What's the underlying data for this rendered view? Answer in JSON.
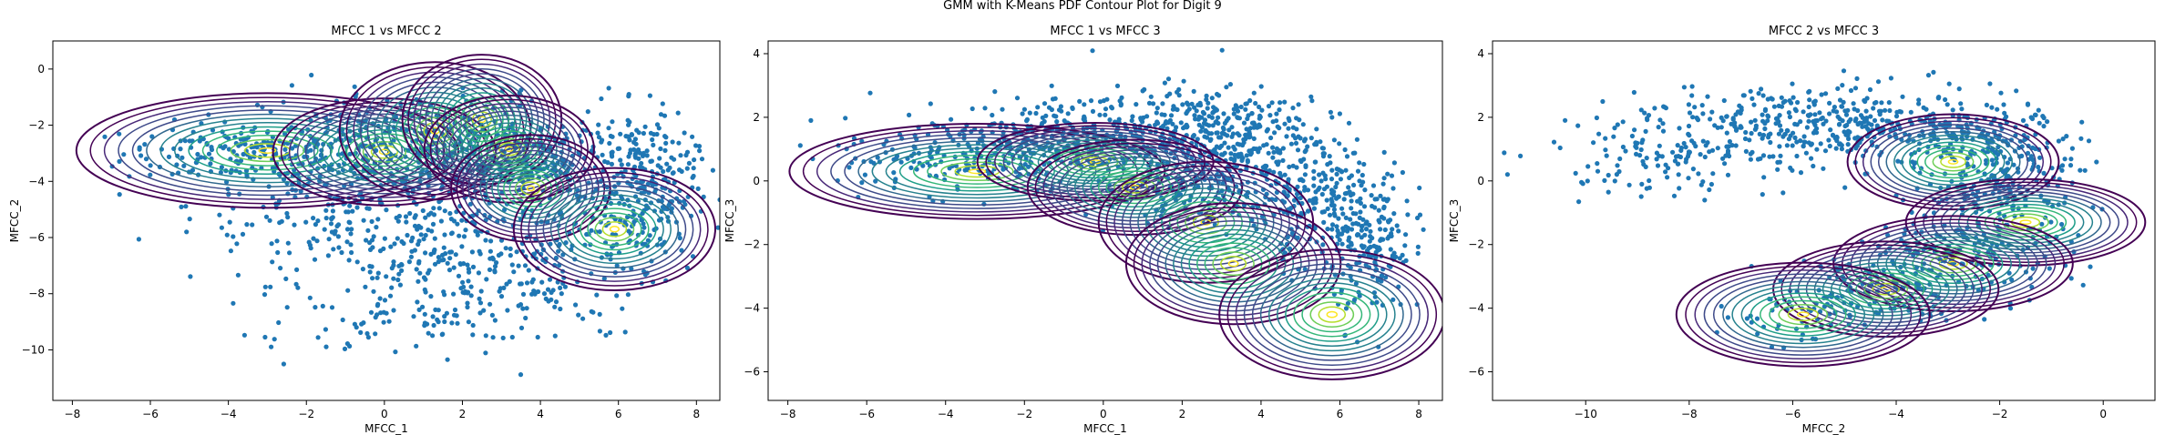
{
  "figure": {
    "suptitle": "GMM with K-Means PDF Contour Plot for Digit 9"
  },
  "colors": {
    "scatter": "#1f77b4",
    "viridis": [
      "#440154",
      "#482878",
      "#3e4a89",
      "#31688e",
      "#26828e",
      "#1f9e89",
      "#35b779",
      "#6ece58",
      "#b5de2b",
      "#fde725"
    ]
  },
  "chart_data": [
    {
      "type": "scatter",
      "title": "MFCC 1 vs MFCC 2",
      "xlabel": "MFCC_1",
      "ylabel": "MFCC_2",
      "xlim": [
        -8.5,
        8.6
      ],
      "ylim": [
        -11.8,
        1.0
      ],
      "xticks": [
        -8,
        -6,
        -4,
        -2,
        0,
        2,
        4,
        6,
        8
      ],
      "yticks": [
        0,
        -2,
        -4,
        -6,
        -8,
        -10
      ],
      "contour": "GMM PDF (viridis)",
      "components": [
        {
          "mean": [
            -3.0,
            -2.9
          ],
          "sd": [
            1.8,
            0.75
          ],
          "rot": 0
        },
        {
          "mean": [
            0.0,
            -2.95
          ],
          "sd": [
            1.05,
            0.7
          ],
          "rot": 0
        },
        {
          "mean": [
            1.3,
            -2.2
          ],
          "sd": [
            0.9,
            0.9
          ],
          "rot": 0
        },
        {
          "mean": [
            2.5,
            -1.8
          ],
          "sd": [
            0.75,
            0.85
          ],
          "rot": 0
        },
        {
          "mean": [
            3.2,
            -2.85
          ],
          "sd": [
            0.8,
            0.7
          ],
          "rot": 0
        },
        {
          "mean": [
            3.75,
            -4.25
          ],
          "sd": [
            0.75,
            0.7
          ],
          "rot": 0
        },
        {
          "mean": [
            5.9,
            -5.7
          ],
          "sd": [
            0.95,
            0.8
          ],
          "rot": 0
        }
      ],
      "scatter_clusters": [
        {
          "mean": [
            -3.5,
            -3.0
          ],
          "sd": [
            1.6,
            0.55
          ],
          "n": 180
        },
        {
          "mean": [
            -1.0,
            -4.8
          ],
          "sd": [
            2.0,
            1.4
          ],
          "n": 260
        },
        {
          "mean": [
            1.5,
            -7.2
          ],
          "sd": [
            1.8,
            1.3
          ],
          "n": 200
        },
        {
          "mean": [
            3.8,
            -6.6
          ],
          "sd": [
            1.6,
            1.5
          ],
          "n": 180
        },
        {
          "mean": [
            0.5,
            -2.6
          ],
          "sd": [
            1.8,
            0.9
          ],
          "n": 220
        },
        {
          "mean": [
            4.2,
            -3.3
          ],
          "sd": [
            1.8,
            0.9
          ],
          "n": 280
        },
        {
          "mean": [
            6.6,
            -4.3
          ],
          "sd": [
            0.7,
            1.3
          ],
          "n": 220
        },
        {
          "mean": [
            0.0,
            -9.3
          ],
          "sd": [
            1.5,
            0.6
          ],
          "n": 35
        }
      ]
    },
    {
      "type": "scatter",
      "title": "MFCC 1 vs MFCC 3",
      "xlabel": "MFCC_1",
      "ylabel": "MFCC_3",
      "xlim": [
        -8.5,
        8.6
      ],
      "ylim": [
        -6.9,
        4.4
      ],
      "xticks": [
        -8,
        -6,
        -4,
        -2,
        0,
        2,
        4,
        6,
        8
      ],
      "yticks": [
        4,
        2,
        0,
        -2,
        -4,
        -6
      ],
      "contour": "GMM PDF (viridis)",
      "components": [
        {
          "mean": [
            -3.2,
            0.3
          ],
          "sd": [
            1.75,
            0.55
          ],
          "rot": 0
        },
        {
          "mean": [
            -0.2,
            0.6
          ],
          "sd": [
            1.1,
            0.45
          ],
          "rot": 0
        },
        {
          "mean": [
            0.8,
            -0.2
          ],
          "sd": [
            1.0,
            0.55
          ],
          "rot": 0
        },
        {
          "mean": [
            2.6,
            -1.3
          ],
          "sd": [
            1.0,
            0.7
          ],
          "rot": 0
        },
        {
          "mean": [
            3.3,
            -2.6
          ],
          "sd": [
            1.0,
            0.7
          ],
          "rot": 0
        },
        {
          "mean": [
            5.8,
            -4.2
          ],
          "sd": [
            1.05,
            0.75
          ],
          "rot": 0
        }
      ],
      "scatter_clusters": [
        {
          "mean": [
            -3.5,
            0.8
          ],
          "sd": [
            1.6,
            0.6
          ],
          "n": 200
        },
        {
          "mean": [
            -0.5,
            1.5
          ],
          "sd": [
            1.6,
            0.6
          ],
          "n": 260
        },
        {
          "mean": [
            2.5,
            1.6
          ],
          "sd": [
            1.4,
            0.7
          ],
          "n": 280
        },
        {
          "mean": [
            4.5,
            0.5
          ],
          "sd": [
            1.2,
            0.9
          ],
          "n": 200
        },
        {
          "mean": [
            5.8,
            -1.0
          ],
          "sd": [
            0.9,
            0.9
          ],
          "n": 180
        },
        {
          "mean": [
            6.8,
            -2.5
          ],
          "sd": [
            0.5,
            1.0
          ],
          "n": 120
        },
        {
          "mean": [
            2.0,
            -0.5
          ],
          "sd": [
            1.2,
            0.6
          ],
          "n": 120
        }
      ]
    },
    {
      "type": "scatter",
      "title": "MFCC 2 vs MFCC 3",
      "xlabel": "MFCC_2",
      "ylabel": "MFCC_3",
      "xlim": [
        -11.8,
        1.0
      ],
      "ylim": [
        -6.9,
        4.4
      ],
      "xticks": [
        -10,
        -8,
        -6,
        -4,
        -2,
        0
      ],
      "yticks": [
        4,
        2,
        0,
        -2,
        -4,
        -6
      ],
      "contour": "GMM PDF (viridis)",
      "components": [
        {
          "mean": [
            -2.9,
            0.6
          ],
          "sd": [
            0.75,
            0.55
          ],
          "rot": 0
        },
        {
          "mean": [
            -1.5,
            -1.3
          ],
          "sd": [
            0.85,
            0.5
          ],
          "rot": 0
        },
        {
          "mean": [
            -2.9,
            -2.6
          ],
          "sd": [
            0.85,
            0.55
          ],
          "rot": 0
        },
        {
          "mean": [
            -4.2,
            -3.4
          ],
          "sd": [
            0.8,
            0.55
          ],
          "rot": 0
        },
        {
          "mean": [
            -5.8,
            -4.2
          ],
          "sd": [
            0.9,
            0.6
          ],
          "rot": 0
        }
      ],
      "scatter_clusters": [
        {
          "mean": [
            -8.5,
            1.0
          ],
          "sd": [
            1.1,
            0.7
          ],
          "n": 150
        },
        {
          "mean": [
            -6.0,
            1.8
          ],
          "sd": [
            1.2,
            0.6
          ],
          "n": 220
        },
        {
          "mean": [
            -3.5,
            1.5
          ],
          "sd": [
            1.2,
            0.7
          ],
          "n": 260
        },
        {
          "mean": [
            -1.8,
            0.3
          ],
          "sd": [
            0.7,
            0.8
          ],
          "n": 180
        },
        {
          "mean": [
            -2.5,
            -2.0
          ],
          "sd": [
            1.0,
            0.8
          ],
          "n": 160
        },
        {
          "mean": [
            -4.3,
            -3.3
          ],
          "sd": [
            0.8,
            0.5
          ],
          "n": 90
        },
        {
          "mean": [
            -5.8,
            -4.2
          ],
          "sd": [
            0.8,
            0.5
          ],
          "n": 60
        }
      ]
    }
  ]
}
